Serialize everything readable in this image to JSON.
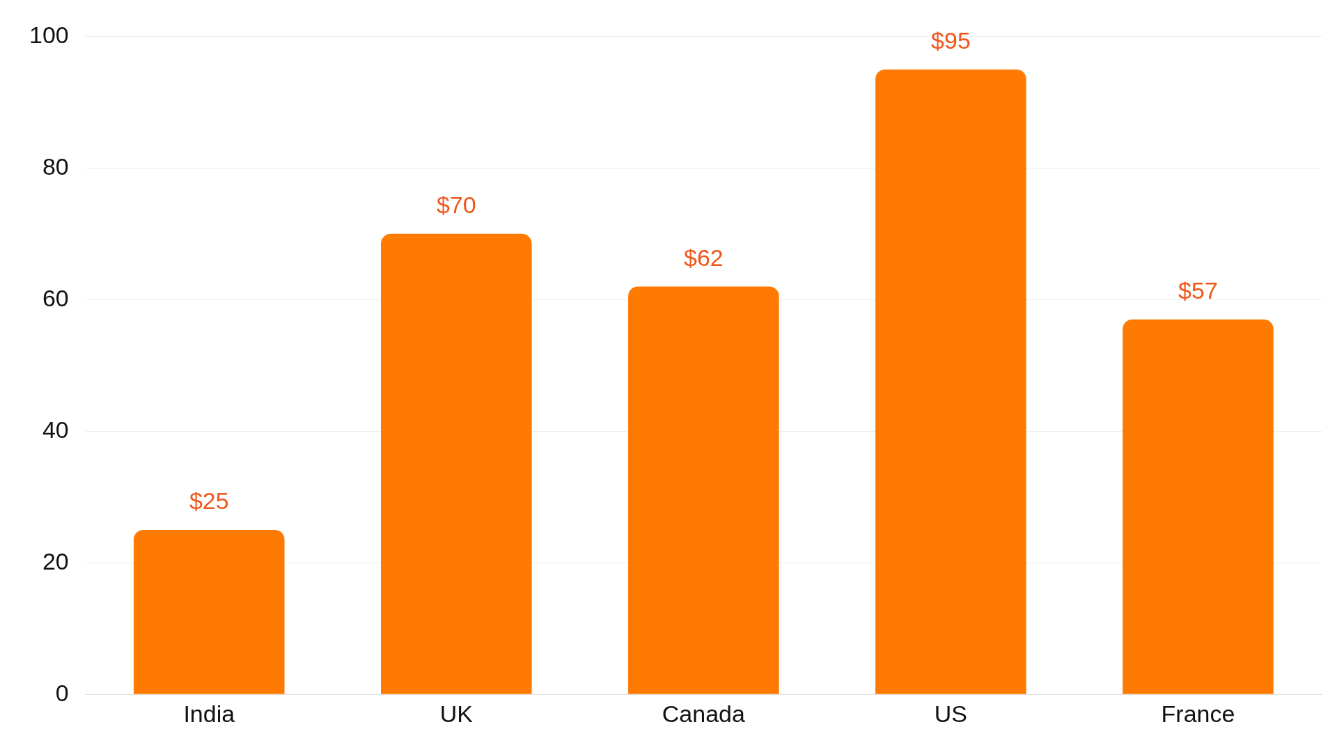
{
  "chart_data": {
    "type": "bar",
    "categories": [
      "India",
      "UK",
      "Canada",
      "US",
      "France"
    ],
    "values": [
      25,
      70,
      62,
      95,
      57
    ],
    "value_labels": [
      "$25",
      "$70",
      "$62",
      "$95",
      "$57"
    ],
    "color": "#ff7a00",
    "ylim": [
      0,
      100
    ],
    "yticks": [
      0,
      20,
      40,
      60,
      80,
      100
    ],
    "grid": "y",
    "legend": false
  }
}
